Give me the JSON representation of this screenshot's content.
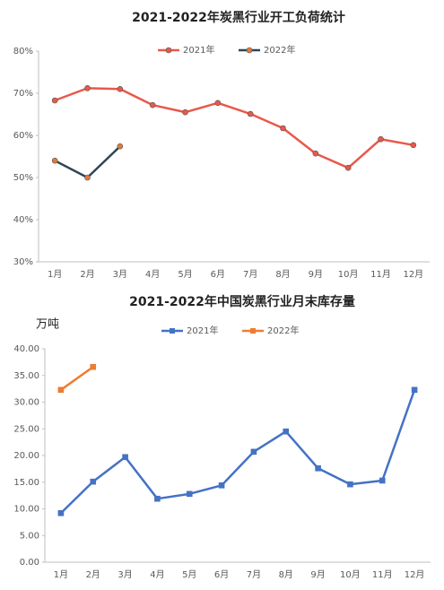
{
  "chart_data": [
    {
      "type": "line",
      "title": "2021-2022年炭黑行业开工负荷统计",
      "categories": [
        "1月",
        "2月",
        "3月",
        "4月",
        "5月",
        "6月",
        "7月",
        "8月",
        "9月",
        "10月",
        "11月",
        "12月"
      ],
      "series": [
        {
          "name": "2021年",
          "color": "#e8594a",
          "marker_color": "#e8594a",
          "marker": "circle",
          "values": [
            68.3,
            71.2,
            71.0,
            67.2,
            65.5,
            67.7,
            65.1,
            61.7,
            55.7,
            52.3,
            59.1,
            57.7
          ]
        },
        {
          "name": "2022年",
          "color": "#2e4453",
          "marker_color": "#e07b39",
          "marker": "circle",
          "values": [
            54.0,
            50.0,
            57.4,
            null,
            null,
            null,
            null,
            null,
            null,
            null,
            null,
            null
          ]
        }
      ],
      "ylim": [
        30,
        80
      ],
      "yticks": [
        {
          "value": 30,
          "label": "30%"
        },
        {
          "value": 40,
          "label": "40%"
        },
        {
          "value": 50,
          "label": "50%"
        },
        {
          "value": 60,
          "label": "60%"
        },
        {
          "value": 70,
          "label": "70%"
        },
        {
          "value": 80,
          "label": "80%"
        }
      ],
      "legend": "top"
    },
    {
      "type": "line",
      "title": "2021-2022年中国炭黑行业月末库存量",
      "y_label": "万吨",
      "categories": [
        "1月",
        "2月",
        "3月",
        "4月",
        "5月",
        "6月",
        "7月",
        "8月",
        "9月",
        "10月",
        "11月",
        "12月"
      ],
      "series": [
        {
          "name": "2021年",
          "color": "#4472c4",
          "marker_color": "#4472c4",
          "marker": "square",
          "values": [
            9.2,
            15.1,
            19.7,
            11.9,
            12.8,
            14.4,
            20.7,
            24.5,
            17.6,
            14.6,
            15.3,
            32.3
          ]
        },
        {
          "name": "2022年",
          "color": "#ed7d31",
          "marker_color": "#ed7d31",
          "marker": "square",
          "values": [
            32.3,
            36.6,
            null,
            null,
            null,
            null,
            null,
            null,
            null,
            null,
            null,
            null
          ]
        }
      ],
      "ylim": [
        0,
        40
      ],
      "yticks": [
        {
          "value": 0,
          "label": "0.00"
        },
        {
          "value": 5,
          "label": "5.00"
        },
        {
          "value": 10,
          "label": "10.00"
        },
        {
          "value": 15,
          "label": "15.00"
        },
        {
          "value": 20,
          "label": "20.00"
        },
        {
          "value": 25,
          "label": "25.00"
        },
        {
          "value": 30,
          "label": "30.00"
        },
        {
          "value": 35,
          "label": "35.00"
        },
        {
          "value": 40,
          "label": "40.00"
        }
      ],
      "legend": "top"
    }
  ]
}
